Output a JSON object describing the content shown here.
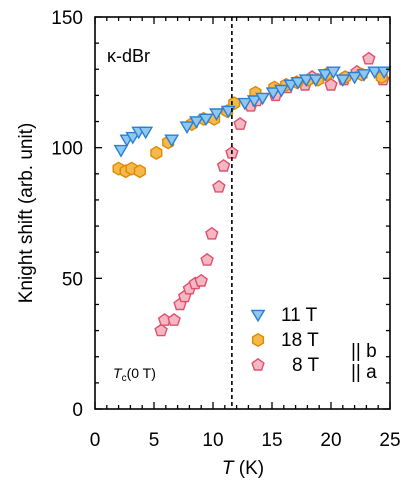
{
  "chart_data": {
    "type": "scatter",
    "title": "",
    "annotation": "κ-dBr",
    "xlabel": {
      "italic": "T",
      "rest": " (K)"
    },
    "ylabel": "Knight shift (arb. unit)",
    "xlim": [
      0,
      25
    ],
    "ylim": [
      0,
      150
    ],
    "xticks": [
      0,
      5,
      10,
      15,
      20,
      25
    ],
    "yticks": [
      0,
      50,
      100,
      150
    ],
    "grid": false,
    "legend_position": "bottom-right",
    "tc_line": {
      "x": 11.6,
      "label_main": "T",
      "label_sub": "c",
      "label_rest": "(0 T)"
    },
    "legend_suffix": {
      "b_text": "|| b",
      "a_text": "|| a"
    },
    "series": [
      {
        "name": "11 T",
        "marker": "triangle-down",
        "fill": "#8ec8f0",
        "stroke": "#2a7fd4",
        "x": [
          2.2,
          2.7,
          3.2,
          3.7,
          4.3,
          6.5,
          7.8,
          8.6,
          9.4,
          10.3,
          11.3,
          12.7,
          13.5,
          14.2,
          15.1,
          15.8,
          16.6,
          17.2,
          17.9,
          18.7,
          19.5,
          20.2,
          21.0,
          22.0,
          22.8,
          23.7,
          24.5
        ],
        "y": [
          99,
          103,
          104,
          106,
          106,
          103,
          108,
          110,
          111,
          113,
          114,
          117,
          118,
          119,
          121,
          122,
          124,
          125,
          126,
          126,
          128,
          129,
          126,
          127,
          128,
          129,
          129
        ]
      },
      {
        "name": "18 T",
        "marker": "hexagon",
        "fill": "#f5b84a",
        "stroke": "#e08a00",
        "x": [
          2.0,
          2.6,
          3.1,
          3.8,
          5.2,
          6.2,
          8.2,
          9.2,
          10.1,
          11.2,
          11.8,
          13.6,
          15.2,
          16.2,
          17.1,
          18.1,
          18.9,
          19.6,
          21.2,
          22.6,
          24.3
        ],
        "y": [
          92,
          91,
          92,
          91,
          98,
          102,
          109,
          111,
          111,
          114,
          117,
          121,
          123,
          124,
          125,
          126,
          126,
          128,
          127,
          128,
          127
        ]
      },
      {
        "name": "8 T",
        "marker": "pentagon",
        "fill": "#f4b8c4",
        "stroke": "#e0506a",
        "x": [
          5.6,
          5.9,
          6.7,
          7.2,
          7.6,
          8.0,
          8.5,
          9.0,
          9.5,
          9.9,
          10.5,
          10.9,
          11.6,
          12.3,
          13.2,
          13.7,
          15.3,
          16.3,
          17.8,
          18.4,
          20.0,
          21.1,
          22.2,
          23.2,
          24.4
        ],
        "y": [
          30,
          34,
          34,
          40,
          43,
          46,
          48,
          49,
          57,
          67,
          85,
          93,
          98,
          109,
          116,
          118,
          120,
          123,
          124,
          127,
          124,
          126,
          129,
          134,
          126
        ]
      }
    ]
  }
}
